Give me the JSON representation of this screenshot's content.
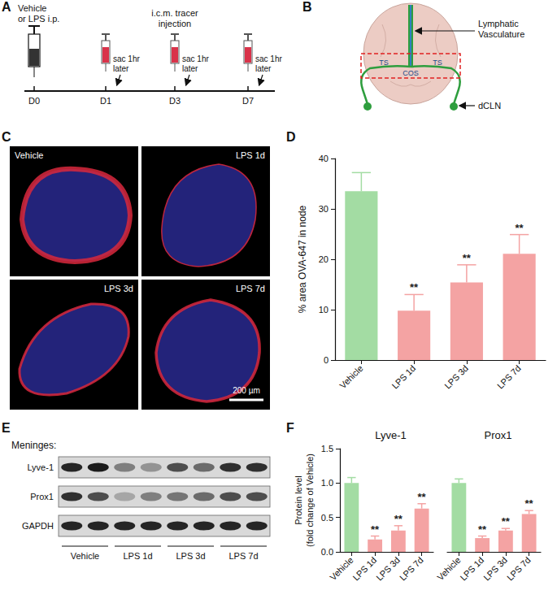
{
  "panel_labels": [
    "A",
    "B",
    "C",
    "D",
    "E",
    "F"
  ],
  "timeline": {
    "treatment": [
      "Vehicle",
      "or LPS i.p."
    ],
    "tracer": [
      "i.c.m. tracer",
      "injection"
    ],
    "sac": [
      "sac 1hr",
      "later"
    ],
    "days": [
      "D0",
      "D1",
      "D3",
      "D7"
    ]
  },
  "schematic": {
    "vessels": [
      "Lymphatic",
      "Vasculature"
    ],
    "sinus_labels": [
      "TS",
      "TS"
    ],
    "confluence": "COS",
    "node": "dCLN"
  },
  "images": {
    "labels": [
      "Vehicle",
      "LPS 1d",
      "LPS 3d",
      "LPS 7d"
    ],
    "scale_bar": "200 µm"
  },
  "blot": {
    "title": "Meninges:",
    "rows": [
      {
        "name": "Lyve-1",
        "band_intensity": [
          0.9,
          0.95,
          0.45,
          0.35,
          0.7,
          0.55,
          0.85,
          0.85
        ]
      },
      {
        "name": "Prox1",
        "band_intensity": [
          0.85,
          0.7,
          0.25,
          0.45,
          0.5,
          0.55,
          0.7,
          0.7
        ]
      },
      {
        "name": "GAPDH",
        "band_intensity": [
          0.9,
          0.9,
          0.9,
          0.9,
          0.9,
          0.9,
          0.9,
          0.9
        ]
      }
    ],
    "groups": [
      "Vehicle",
      "LPS 1d",
      "LPS 3d",
      "LPS 7d"
    ]
  },
  "chart_data": [
    {
      "type": "bar",
      "y_label": "% area OVA-647 in node",
      "categories": [
        "Vehicle",
        "LPS 1d",
        "LPS 3d",
        "LPS 7d"
      ],
      "values": [
        33.5,
        9.8,
        15.4,
        21.1
      ],
      "errors": [
        3.7,
        3.2,
        3.5,
        3.8
      ],
      "colors": [
        "#a3dca3",
        "#f4a3a3",
        "#f4a3a3",
        "#f4a3a3"
      ],
      "significance": [
        null,
        "**",
        "**",
        "**"
      ],
      "ylim": [
        0,
        40
      ],
      "yticks": [
        0,
        10,
        20,
        30,
        40
      ]
    },
    {
      "type": "bar",
      "y_label": [
        "Protein level",
        "(fold change of Vehicle)"
      ],
      "ylim": [
        0,
        1.5
      ],
      "yticks": [
        {
          "value": 0,
          "label": "0.0"
        },
        0.5,
        {
          "value": 1,
          "label": "1.0"
        },
        1.5
      ],
      "groups": [
        {
          "name": "Lyve-1",
          "categories": [
            "Vehicle",
            "LPS 1d",
            "LPS 3d",
            "LPS 7d"
          ],
          "values": [
            1.0,
            0.18,
            0.31,
            0.63
          ],
          "errors": [
            0.08,
            0.05,
            0.07,
            0.07
          ],
          "colors": [
            "#a3dca3",
            "#f4a3a3",
            "#f4a3a3",
            "#f4a3a3"
          ],
          "significance": [
            null,
            "**",
            "**",
            "**"
          ]
        },
        {
          "name": "Prox1",
          "categories": [
            "Vehicle",
            "LPS 1d",
            "LPS 3d",
            "LPS 7d"
          ],
          "values": [
            1.0,
            0.2,
            0.31,
            0.55
          ],
          "errors": [
            0.06,
            0.03,
            0.03,
            0.05
          ],
          "colors": [
            "#a3dca3",
            "#f4a3a3",
            "#f4a3a3",
            "#f4a3a3"
          ],
          "significance": [
            null,
            "**",
            "**",
            "**"
          ]
        }
      ]
    }
  ]
}
